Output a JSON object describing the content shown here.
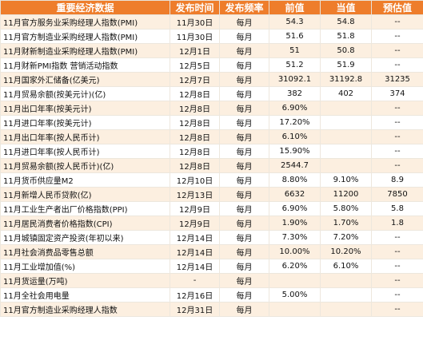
{
  "header": {
    "name": "重要经济数据",
    "time": "发布时间",
    "freq": "发布频率",
    "prev": "前值",
    "curr": "当值",
    "est": "预估值"
  },
  "rows": [
    {
      "name": "11月官方服务业采购经理人指数(PMI)",
      "time": "11月30日",
      "freq": "每月",
      "prev": "54.3",
      "curr": "54.8",
      "est": "--"
    },
    {
      "name": "11月官方制造业采购经理人指数(PMI)",
      "time": "11月30日",
      "freq": "每月",
      "prev": "51.6",
      "curr": "51.8",
      "est": "--"
    },
    {
      "name": "11月财新制造业采购经理人指数(PMI)",
      "time": "12月1日",
      "freq": "每月",
      "prev": "51",
      "curr": "50.8",
      "est": "--"
    },
    {
      "name": "11月财新PMI指数 营销活动指数",
      "time": "12月5日",
      "freq": "每月",
      "prev": "51.2",
      "curr": "51.9",
      "est": "--"
    },
    {
      "name": "11月国家外汇储备(亿美元)",
      "time": "12月7日",
      "freq": "每月",
      "prev": "31092.1",
      "curr": "31192.8",
      "est": "31235"
    },
    {
      "name": "11月贸易余额(按美元计)(亿)",
      "time": "12月8日",
      "freq": "每月",
      "prev": "382",
      "curr": "402",
      "est": "374"
    },
    {
      "name": "11月出口年率(按美元计)",
      "time": "12月8日",
      "freq": "每月",
      "prev": "6.90%",
      "curr": "",
      "est": "--"
    },
    {
      "name": "11月进口年率(按美元计)",
      "time": "12月8日",
      "freq": "每月",
      "prev": "17.20%",
      "curr": "",
      "est": "--"
    },
    {
      "name": "11月出口年率(按人民币计)",
      "time": "12月8日",
      "freq": "每月",
      "prev": "6.10%",
      "curr": "",
      "est": "--"
    },
    {
      "name": "11月进口年率(按人民币计)",
      "time": "12月8日",
      "freq": "每月",
      "prev": "15.90%",
      "curr": "",
      "est": "--"
    },
    {
      "name": "11月贸易余额(按人民币计)(亿)",
      "time": "12月8日",
      "freq": "每月",
      "prev": "2544.7",
      "curr": "",
      "est": "--"
    },
    {
      "name": "11月货币供应量M2",
      "time": "12月10日",
      "freq": "每月",
      "prev": "8.80%",
      "curr": "9.10%",
      "est": "8.9"
    },
    {
      "name": "11月新增人民币贷款(亿)",
      "time": "12月13日",
      "freq": "每月",
      "prev": "6632",
      "curr": "11200",
      "est": "7850"
    },
    {
      "name": "11月工业生产者出厂价格指数(PPI)",
      "time": "12月9日",
      "freq": "每月",
      "prev": "6.90%",
      "curr": "5.80%",
      "est": "5.8"
    },
    {
      "name": "11月居民消费者价格指数(CPI)",
      "time": "12月9日",
      "freq": "每月",
      "prev": "1.90%",
      "curr": "1.70%",
      "est": "1.8"
    },
    {
      "name": "11月城镇固定资产投资(年初以来)",
      "time": "12月14日",
      "freq": "每月",
      "prev": "7.30%",
      "curr": "7.20%",
      "est": "--"
    },
    {
      "name": "11月社会消费品零售总额",
      "time": "12月14日",
      "freq": "每月",
      "prev": "10.00%",
      "curr": "10.20%",
      "est": "--"
    },
    {
      "name": "11月工业增加值(%)",
      "time": "12月14日",
      "freq": "每月",
      "prev": "6.20%",
      "curr": "6.10%",
      "est": "--"
    },
    {
      "name": "11月货运量(万吨)",
      "time": "-",
      "freq": "每月",
      "prev": "",
      "curr": "",
      "est": "--"
    },
    {
      "name": "11月全社会用电量",
      "time": "12月16日",
      "freq": "每月",
      "prev": "5.00%",
      "curr": "",
      "est": "--"
    },
    {
      "name": "11月官方制造业采购经理人指数",
      "time": "12月31日",
      "freq": "每月",
      "prev": "",
      "curr": "",
      "est": "--"
    }
  ]
}
